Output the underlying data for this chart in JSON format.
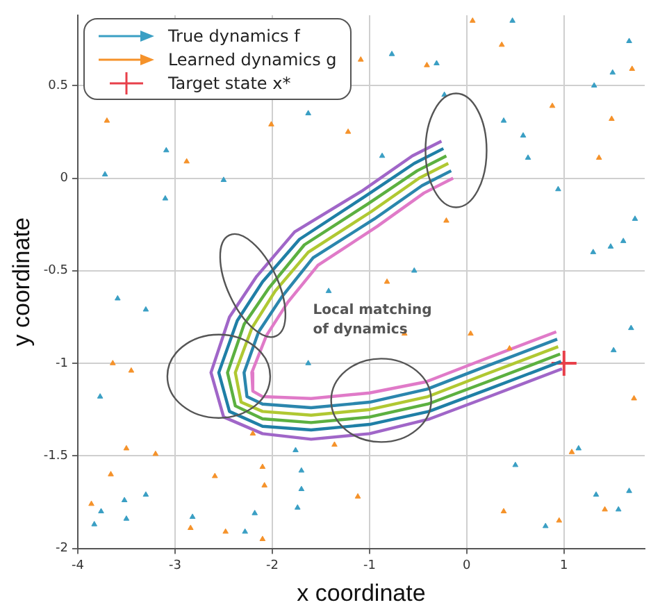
{
  "chart_data": {
    "type": "scatter",
    "xlabel": "x coordinate",
    "ylabel": "y coordinate",
    "xlim": [
      -4,
      1.83
    ],
    "ylim": [
      -2,
      0.88
    ],
    "xticks": [
      -4,
      -3,
      -2,
      -1,
      0,
      1
    ],
    "yticks": [
      -2,
      -1.5,
      -1,
      -0.5,
      0,
      0.5
    ],
    "grid": true,
    "legend": "top left",
    "annotations": [
      "Local matching of dynamics"
    ],
    "series": [
      {
        "name": "True dynamics f",
        "color": "#3a9fc4",
        "marker": "triangle",
        "x": [
          -3.72,
          -3.09,
          -3.1,
          -2.5,
          -1.63,
          -3.59,
          -3.3,
          -3.77,
          -3.52,
          -3.76,
          -3.83,
          -3.5,
          -3.3,
          -2.82,
          -2.28,
          -2.18,
          -1.74,
          -1.7,
          -1.7,
          -1.76,
          -1.63,
          0.5,
          1.15,
          1.33,
          1.56,
          1.67,
          0.81,
          1.51,
          1.69,
          -0.77,
          -0.31,
          0.47,
          1.67,
          1.5,
          1.31,
          -0.23,
          -0.87,
          0.38,
          0.58,
          0.63,
          0.94,
          1.73,
          1.61,
          1.48,
          1.3,
          -0.54,
          -1.42
        ],
        "values": [
          0.02,
          0.15,
          -0.11,
          -0.01,
          0.35,
          -0.65,
          -0.71,
          -1.18,
          -1.74,
          -1.8,
          -1.87,
          -1.84,
          -1.71,
          -1.83,
          -1.91,
          -1.81,
          -1.78,
          -1.68,
          -1.58,
          -1.47,
          -1.0,
          -1.55,
          -1.46,
          -1.71,
          -1.79,
          -1.69,
          -1.88,
          -0.93,
          -0.81,
          0.67,
          0.62,
          0.85,
          0.74,
          0.57,
          0.5,
          0.45,
          0.12,
          0.31,
          0.23,
          0.11,
          -0.06,
          -0.22,
          -0.34,
          -0.37,
          -0.4,
          -0.5,
          -0.61
        ]
      },
      {
        "name": "Learned dynamics g",
        "color": "#f5922a",
        "marker": "triangle",
        "x": [
          -3.7,
          -2.88,
          -2.01,
          -1.09,
          -0.41,
          -1.22,
          0.06,
          0.36,
          1.7,
          0.88,
          1.49,
          1.36,
          -0.21,
          -0.82,
          -3.64,
          -3.45,
          -3.5,
          -3.2,
          -3.66,
          -3.86,
          -2.84,
          -2.48,
          -2.1,
          -2.59,
          -2.1,
          -2.08,
          -2.2,
          -0.64,
          0.04,
          0.44,
          1.72,
          -1.36,
          -1.12,
          0.38,
          0.95,
          1.42,
          1.08
        ],
        "values": [
          0.31,
          0.09,
          0.29,
          0.64,
          0.61,
          0.25,
          0.85,
          0.72,
          0.59,
          0.39,
          0.32,
          0.11,
          -0.23,
          -0.56,
          -1.0,
          -1.04,
          -1.46,
          -1.49,
          -1.6,
          -1.76,
          -1.89,
          -1.91,
          -1.95,
          -1.61,
          -1.56,
          -1.66,
          -1.38,
          -0.84,
          -0.84,
          -0.92,
          -1.19,
          -1.44,
          -1.72,
          -1.8,
          -1.85,
          -1.79,
          -1.48
        ]
      },
      {
        "type": "line",
        "color": "#a066c8",
        "x": [
          -0.26,
          -0.56,
          -1.08,
          -1.77,
          -2.16,
          -2.44,
          -2.63,
          -2.5,
          -2.1,
          -1.6,
          -1.0,
          -0.38,
          0.23,
          0.98
        ],
        "values": [
          0.2,
          0.12,
          -0.07,
          -0.29,
          -0.53,
          -0.75,
          -1.05,
          -1.29,
          -1.38,
          -1.41,
          -1.38,
          -1.3,
          -1.18,
          -1.03
        ]
      },
      {
        "type": "line",
        "color": "#1f7fa6",
        "x": [
          -0.24,
          -0.54,
          -1.05,
          -1.72,
          -2.1,
          -2.36,
          -2.55,
          -2.44,
          -2.1,
          -1.6,
          -1.0,
          -0.39,
          0.22,
          0.97
        ],
        "values": [
          0.16,
          0.08,
          -0.1,
          -0.33,
          -0.56,
          -0.77,
          -1.05,
          -1.26,
          -1.34,
          -1.36,
          -1.33,
          -1.26,
          -1.14,
          -0.99
        ]
      },
      {
        "type": "line",
        "color": "#5cb040",
        "x": [
          -0.21,
          -0.51,
          -1.02,
          -1.67,
          -2.03,
          -2.29,
          -2.46,
          -2.38,
          -2.1,
          -1.6,
          -1.0,
          -0.4,
          0.21,
          0.96
        ],
        "values": [
          0.12,
          0.04,
          -0.14,
          -0.36,
          -0.59,
          -0.79,
          -1.05,
          -1.23,
          -1.3,
          -1.32,
          -1.29,
          -1.22,
          -1.1,
          -0.95
        ]
      },
      {
        "type": "line",
        "color": "#b0c832",
        "x": [
          -0.19,
          -0.49,
          -0.98,
          -1.63,
          -1.97,
          -2.21,
          -2.38,
          -2.32,
          -2.1,
          -1.6,
          -1.0,
          -0.4,
          0.19,
          0.94
        ],
        "values": [
          0.08,
          0.0,
          -0.18,
          -0.4,
          -0.61,
          -0.81,
          -1.05,
          -1.21,
          -1.26,
          -1.28,
          -1.25,
          -1.18,
          -1.06,
          -0.91
        ]
      },
      {
        "type": "line",
        "color": "#2b86ad",
        "x": [
          -0.16,
          -0.46,
          -0.95,
          -1.58,
          -1.9,
          -2.14,
          -2.29,
          -2.26,
          -2.1,
          -1.6,
          -1.0,
          -0.41,
          0.18,
          0.93
        ],
        "values": [
          0.04,
          -0.04,
          -0.22,
          -0.43,
          -0.64,
          -0.83,
          -1.05,
          -1.18,
          -1.22,
          -1.24,
          -1.21,
          -1.14,
          -1.02,
          -0.87
        ]
      },
      {
        "type": "line",
        "color": "#e07ac8",
        "x": [
          -0.14,
          -0.44,
          -0.92,
          -1.53,
          -1.84,
          -2.06,
          -2.21,
          -2.2,
          -2.1,
          -1.6,
          -1.0,
          -0.42,
          0.17,
          0.92
        ],
        "values": [
          0.0,
          -0.08,
          -0.26,
          -0.47,
          -0.67,
          -0.85,
          -1.05,
          -1.15,
          -1.18,
          -1.19,
          -1.16,
          -1.1,
          -0.98,
          -0.83
        ]
      },
      {
        "name": "Target state x*",
        "color": "#e8404a",
        "marker": "cross",
        "x": [
          1
        ],
        "values": [
          -1
        ]
      }
    ]
  }
}
